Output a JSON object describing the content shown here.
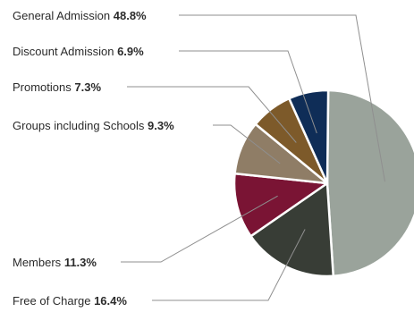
{
  "chart_data": {
    "type": "pie",
    "title": "",
    "slices": [
      {
        "name": "General Admission",
        "display": "48.8%",
        "value": 48.8,
        "color": "#9aa39b"
      },
      {
        "name": "Free of Charge",
        "display": "16.4%",
        "value": 16.4,
        "color": "#383d36"
      },
      {
        "name": "Members",
        "display": "11.3%",
        "value": 11.3,
        "color": "#7a1434"
      },
      {
        "name": "Groups including Schools",
        "display": "9.3%",
        "value": 9.3,
        "color": "#8f7d66"
      },
      {
        "name": "Promotions",
        "display": "7.3%",
        "value": 7.3,
        "color": "#7d5a2a"
      },
      {
        "name": "Discount Admission",
        "display": "6.9%",
        "value": 6.9,
        "color": "#0f2d57"
      }
    ],
    "legend": "leader-lines-left"
  }
}
